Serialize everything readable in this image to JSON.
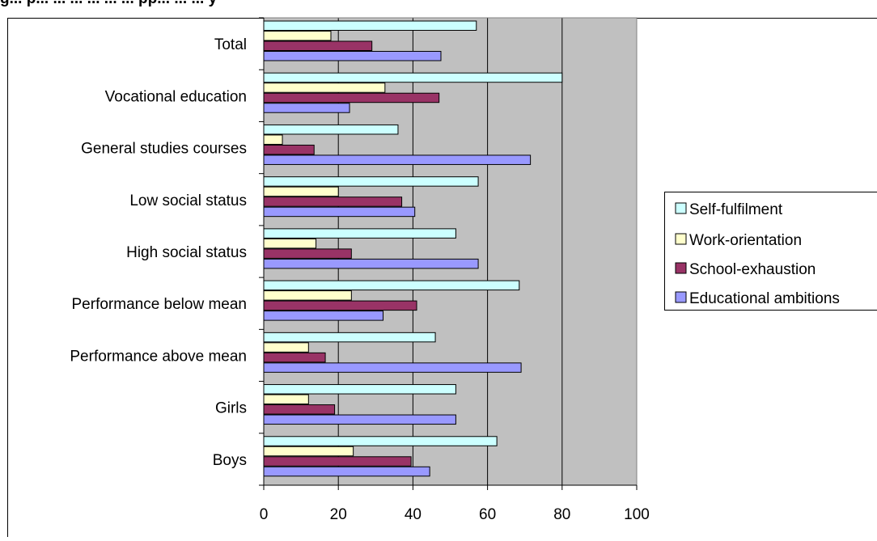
{
  "figure": {
    "caption_fragment": "g... p... ... ... ... ... ... pp... ... ... y"
  },
  "chart_data": {
    "type": "bar",
    "orientation": "horizontal",
    "title": "",
    "xlabel": "",
    "ylabel": "",
    "categories": [
      "Total",
      "Vocational education",
      "General studies courses",
      "Low social status",
      "High social status",
      "Performance below mean",
      "Performance above mean",
      "Girls",
      "Boys"
    ],
    "series": [
      {
        "name": "Self-fulfilment",
        "color": "#CCFFFF",
        "values": [
          57,
          80,
          36,
          57.5,
          51.5,
          68.5,
          46,
          51.5,
          62.5
        ]
      },
      {
        "name": "Work-orientation",
        "color": "#FFFFCC",
        "values": [
          18,
          32.5,
          5,
          20,
          14,
          23.5,
          12,
          12,
          24
        ]
      },
      {
        "name": "School-exhaustion",
        "color": "#993366",
        "values": [
          29,
          47,
          13.5,
          37,
          23.5,
          41,
          16.5,
          19,
          39.5
        ]
      },
      {
        "name": "Educational ambitions",
        "color": "#9999FF",
        "values": [
          47.5,
          23,
          71.5,
          40.5,
          57.5,
          32,
          69,
          51.5,
          44.5
        ]
      }
    ],
    "xlim": [
      0,
      100
    ],
    "xticks": [
      "0",
      "20",
      "40",
      "60",
      "80",
      "100"
    ],
    "grid": true,
    "plot_background": "#C0C0C0",
    "legend_position": "right"
  }
}
